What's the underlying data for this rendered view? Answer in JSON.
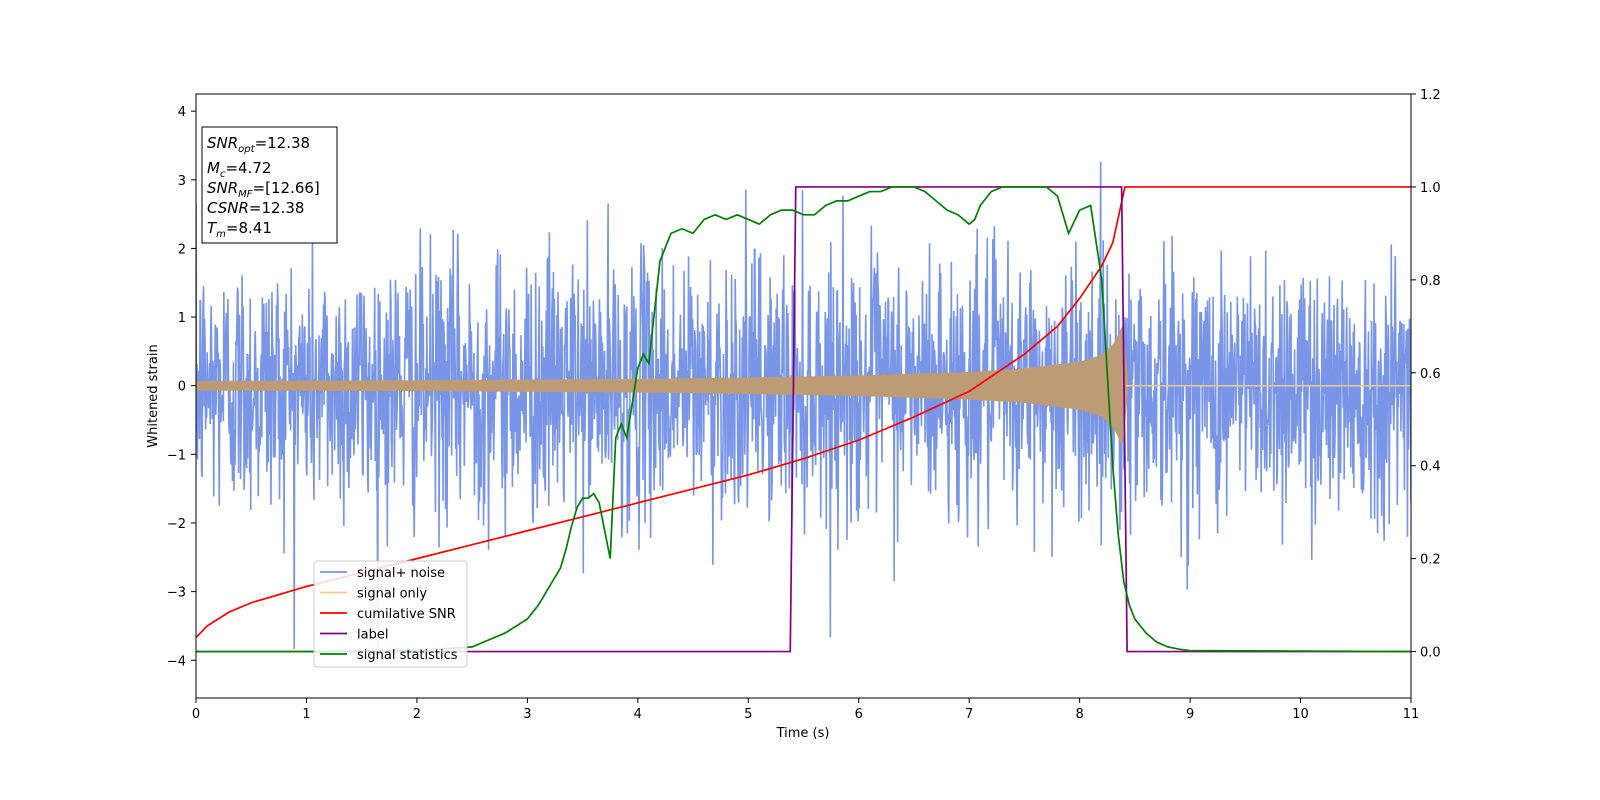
{
  "chart_data": {
    "type": "line",
    "xlabel": "Time (s)",
    "ylabel": "Whitened strain",
    "xlim": [
      0,
      11
    ],
    "ylim": [
      -4.55,
      4.25
    ],
    "y2lim": [
      -0.1,
      1.2
    ],
    "x_ticks": [
      "0",
      "1",
      "2",
      "3",
      "4",
      "5",
      "6",
      "7",
      "8",
      "9",
      "10",
      "11"
    ],
    "y_ticks": [
      "−4",
      "−3",
      "−2",
      "−1",
      "0",
      "1",
      "2",
      "3",
      "4"
    ],
    "y2_ticks": [
      "0.0",
      "0.2",
      "0.4",
      "0.6",
      "0.8",
      "1.0",
      "1.2"
    ],
    "grid": false,
    "legend_position": "lower-left",
    "info_box": {
      "lines": [
        {
          "sym": "SNR",
          "sub": "opt",
          "text": "=12.38"
        },
        {
          "sym": "M",
          "sub": "c",
          "text": "=4.72"
        },
        {
          "sym": "SNR",
          "sub": "MF",
          "text": "=[12.66]"
        },
        {
          "sym": "CSNR",
          "sub": "",
          "text": "=12.38"
        },
        {
          "sym": "T",
          "sub": "m",
          "text": "=8.41"
        }
      ]
    },
    "series": [
      {
        "name": "signal+ noise",
        "axis": "left",
        "color": "#7895e8",
        "description_stats": {
          "x_range": [
            0,
            11
          ],
          "std": 1.0,
          "min": -4.15,
          "max": 3.85
        }
      },
      {
        "name": "signal only",
        "axis": "left",
        "color": "#f5c98a",
        "envelope": {
          "x": [
            0,
            1,
            2,
            3,
            4,
            5,
            6,
            7,
            7.5,
            8,
            8.2,
            8.3,
            8.35,
            8.41,
            8.42,
            11
          ],
          "amplitude": [
            0.07,
            0.075,
            0.08,
            0.09,
            0.1,
            0.12,
            0.15,
            0.2,
            0.25,
            0.35,
            0.45,
            0.6,
            0.75,
            0.95,
            0.0,
            0.0
          ]
        }
      },
      {
        "name": "cumilative SNR",
        "axis": "right",
        "color": "#ff0000",
        "x": [
          0,
          0.1,
          0.3,
          0.5,
          1,
          1.5,
          2,
          2.5,
          3,
          3.5,
          4,
          4.5,
          5,
          5.5,
          6,
          6.5,
          7,
          7.5,
          7.8,
          8,
          8.2,
          8.3,
          8.41,
          8.42,
          11
        ],
        "y": [
          0.03,
          0.055,
          0.085,
          0.105,
          0.14,
          0.17,
          0.2,
          0.23,
          0.26,
          0.29,
          0.32,
          0.35,
          0.38,
          0.415,
          0.455,
          0.505,
          0.56,
          0.64,
          0.7,
          0.76,
          0.83,
          0.88,
          1.0,
          1.0,
          1.0
        ]
      },
      {
        "name": "label",
        "axis": "right",
        "color": "#800080",
        "x": [
          0,
          5.38,
          5.43,
          8.38,
          8.43,
          11
        ],
        "y": [
          0,
          0,
          1,
          1,
          0,
          0
        ]
      },
      {
        "name": "signal statistics",
        "axis": "right",
        "color": "#008000",
        "x": [
          0,
          1,
          2,
          2.5,
          2.8,
          3.0,
          3.1,
          3.15,
          3.2,
          3.3,
          3.35,
          3.4,
          3.45,
          3.5,
          3.55,
          3.6,
          3.65,
          3.75,
          3.8,
          3.85,
          3.9,
          4.0,
          4.05,
          4.1,
          4.2,
          4.3,
          4.4,
          4.5,
          4.6,
          4.7,
          4.8,
          4.9,
          5.0,
          5.1,
          5.2,
          5.3,
          5.4,
          5.5,
          5.6,
          5.7,
          5.8,
          5.9,
          6.0,
          6.1,
          6.2,
          6.3,
          6.4,
          6.5,
          6.6,
          6.7,
          6.8,
          6.9,
          7.0,
          7.05,
          7.1,
          7.2,
          7.3,
          7.5,
          7.7,
          7.8,
          7.9,
          8.0,
          8.1,
          8.2,
          8.25,
          8.3,
          8.35,
          8.4,
          8.45,
          8.5,
          8.6,
          8.7,
          8.8,
          8.9,
          9.0,
          10,
          11
        ],
        "y": [
          0,
          0,
          0.002,
          0.01,
          0.04,
          0.07,
          0.1,
          0.12,
          0.14,
          0.18,
          0.22,
          0.27,
          0.31,
          0.33,
          0.33,
          0.34,
          0.32,
          0.2,
          0.46,
          0.49,
          0.46,
          0.61,
          0.64,
          0.62,
          0.84,
          0.9,
          0.91,
          0.9,
          0.93,
          0.94,
          0.93,
          0.94,
          0.93,
          0.92,
          0.94,
          0.95,
          0.95,
          0.94,
          0.94,
          0.96,
          0.97,
          0.97,
          0.98,
          0.99,
          0.99,
          1.0,
          1.0,
          1.0,
          0.99,
          0.97,
          0.95,
          0.94,
          0.92,
          0.93,
          0.96,
          0.99,
          1.0,
          1.0,
          1.0,
          0.98,
          0.9,
          0.95,
          0.96,
          0.8,
          0.6,
          0.4,
          0.25,
          0.15,
          0.1,
          0.07,
          0.04,
          0.02,
          0.01,
          0.005,
          0.002,
          0.001,
          0
        ]
      }
    ]
  },
  "colors": {
    "signal_noise": "#7895e8",
    "signal_only": "#f5c98a",
    "signal_overlap": "#bd9b75",
    "cumulative_snr": "#ff0000",
    "label": "#800080",
    "signal_statistics": "#008000"
  }
}
